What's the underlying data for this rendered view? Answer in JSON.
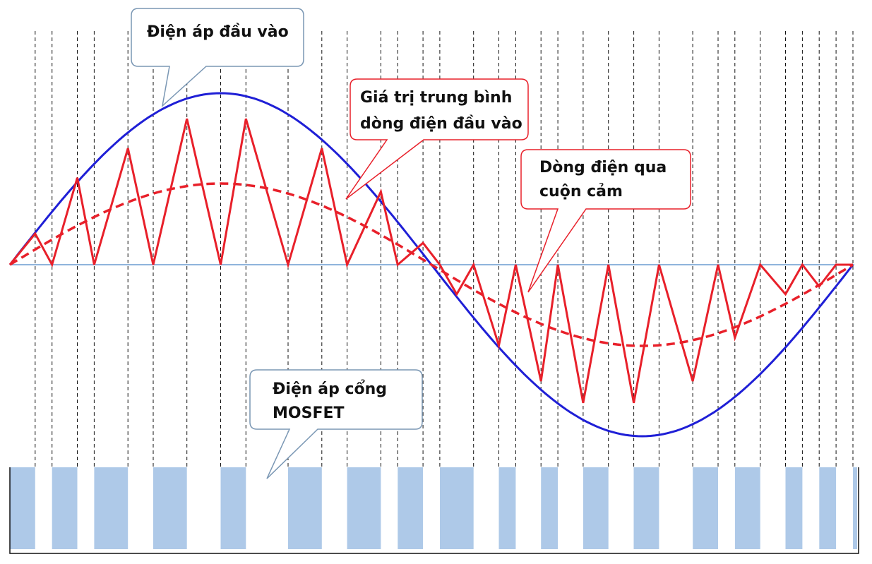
{
  "callouts": {
    "input_voltage": {
      "lines": [
        "Điện áp đầu vào"
      ]
    },
    "average_input_current": {
      "lines": [
        "Giá trị trung bình",
        "dòng điện đầu vào"
      ]
    },
    "inductor_current": {
      "lines": [
        "Dòng điện qua",
        "cuộn cảm"
      ]
    },
    "mosfet_gate_voltage": {
      "lines": [
        "Điện áp cổng",
        "MOSFET"
      ]
    }
  },
  "colors": {
    "input_voltage": "#1f1fd6",
    "inductor_current": "#e8202a",
    "average_current": "#e8202a",
    "gate_pulse": "#aec9e8",
    "baseline": "#6a9bd1",
    "callout_blue_border": "#7a97b4",
    "callout_red_border": "#e8202a",
    "dashed_grid": "#111111"
  },
  "series": {
    "inductor_current_ripple": {
      "t": [
        0.0,
        0.03,
        0.05,
        0.08,
        0.1,
        0.14,
        0.17,
        0.21,
        0.25,
        0.28,
        0.33,
        0.37,
        0.4,
        0.44,
        0.46,
        0.49,
        0.51,
        0.53,
        0.55,
        0.58,
        0.6,
        0.63,
        0.65,
        0.68,
        0.71,
        0.74,
        0.77,
        0.81,
        0.84,
        0.86,
        0.89,
        0.92,
        0.94,
        0.96,
        0.98,
        1.0
      ],
      "i": [
        0.0,
        0.2,
        0.0,
        0.56,
        0.0,
        0.75,
        0.0,
        0.94,
        0.0,
        0.94,
        0.0,
        0.75,
        0.0,
        0.47,
        0.0,
        0.14,
        0.0,
        -0.19,
        0.0,
        -0.52,
        0.0,
        -0.75,
        0.0,
        -0.89,
        0.0,
        -0.89,
        0.0,
        -0.75,
        0.0,
        -0.47,
        0.0,
        -0.19,
        0.0,
        -0.14,
        0.0,
        0.0
      ]
    },
    "gate_on_intervals": [
      [
        0.03,
        0.05
      ],
      [
        0.08,
        0.1
      ],
      [
        0.14,
        0.17
      ],
      [
        0.21,
        0.25
      ],
      [
        0.28,
        0.33
      ],
      [
        0.37,
        0.4
      ],
      [
        0.44,
        0.46
      ],
      [
        0.49,
        0.51
      ],
      [
        0.55,
        0.58
      ],
      [
        0.6,
        0.63
      ],
      [
        0.65,
        0.68
      ],
      [
        0.71,
        0.74
      ],
      [
        0.77,
        0.81
      ],
      [
        0.84,
        0.86
      ],
      [
        0.89,
        0.92
      ],
      [
        0.94,
        0.96
      ],
      [
        0.98,
        1.0
      ]
    ]
  }
}
